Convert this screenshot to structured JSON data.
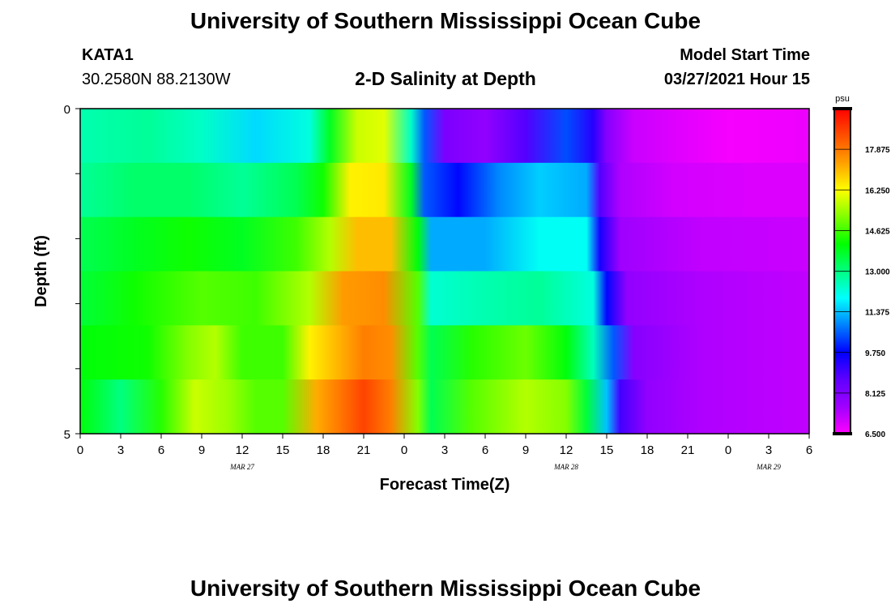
{
  "header": {
    "title": "University of Southern Mississippi Ocean Cube",
    "footer_title": "University of Southern Mississippi Ocean Cube",
    "station": "KATA1",
    "coords": "30.2580N  88.2130W",
    "chart_title": "2-D Salinity at Depth",
    "start_label": "Model Start Time",
    "start_value": "03/27/2021 Hour 15"
  },
  "chart_data": {
    "type": "heatmap",
    "title": "2-D Salinity at Depth",
    "xlabel": "Forecast Time(Z)",
    "ylabel": "Depth (ft)",
    "x_tick_labels": [
      "0",
      "3",
      "6",
      "9",
      "12",
      "15",
      "18",
      "21",
      "0",
      "3",
      "6",
      "9",
      "12",
      "15",
      "18",
      "21",
      "0",
      "3",
      "6"
    ],
    "date_labels": [
      {
        "label": "MAR 27",
        "tick_index": 4
      },
      {
        "label": "MAR 28",
        "tick_index": 12
      },
      {
        "label": "MAR 29",
        "tick_index": 17
      }
    ],
    "x_range_hours": [
      0,
      54
    ],
    "y_tick_labels": [
      "0",
      "5"
    ],
    "ylim": [
      0,
      5
    ],
    "y_rows": 5,
    "units": "psu",
    "colorbar_ticks": [
      "17.875",
      "16.250",
      "14.625",
      "13.000",
      "11.375",
      "9.750",
      "8.125",
      "6.500"
    ],
    "color_range": [
      6.5,
      19.5
    ],
    "colors": {
      "scale": [
        "#ff00ff",
        "#9f00ff",
        "#5f00ff",
        "#0000ff",
        "#0080ff",
        "#00ffff",
        "#00ff80",
        "#00ff00",
        "#80ff00",
        "#ffff00",
        "#ffa000",
        "#ff5000",
        "#ff0000"
      ]
    },
    "row_keypoints": [
      {
        "depth_row": 0,
        "points": [
          [
            0,
            12.6
          ],
          [
            5,
            12.8
          ],
          [
            9,
            12.4
          ],
          [
            13,
            11.6
          ],
          [
            17,
            12.2
          ],
          [
            18.5,
            13.8
          ],
          [
            20.5,
            15.8
          ],
          [
            22.5,
            16.0
          ],
          [
            24.5,
            12.4
          ],
          [
            25.5,
            10.5
          ],
          [
            27,
            8.2
          ],
          [
            30,
            7.8
          ],
          [
            33,
            8.8
          ],
          [
            36,
            10.4
          ],
          [
            38,
            9.3
          ],
          [
            39,
            8.0
          ],
          [
            41,
            7.1
          ],
          [
            45,
            6.8
          ],
          [
            48,
            6.6
          ],
          [
            54,
            6.7
          ]
        ]
      },
      {
        "depth_row": 1,
        "points": [
          [
            0,
            12.8
          ],
          [
            4,
            13.2
          ],
          [
            8,
            13.2
          ],
          [
            12,
            12.8
          ],
          [
            16,
            13.4
          ],
          [
            18,
            14.2
          ],
          [
            20,
            16.4
          ],
          [
            22.5,
            16.5
          ],
          [
            24.5,
            13.8
          ],
          [
            25.5,
            10.5
          ],
          [
            28,
            9.8
          ],
          [
            31,
            10.9
          ],
          [
            34,
            11.5
          ],
          [
            37.5,
            11.2
          ],
          [
            38.5,
            8.8
          ],
          [
            40,
            7.4
          ],
          [
            44,
            7.0
          ],
          [
            50,
            6.9
          ],
          [
            54,
            6.9
          ]
        ]
      },
      {
        "depth_row": 2,
        "points": [
          [
            0,
            13.4
          ],
          [
            4,
            13.8
          ],
          [
            8,
            14.2
          ],
          [
            12,
            13.8
          ],
          [
            16,
            14.6
          ],
          [
            18.5,
            15.6
          ],
          [
            20.5,
            17.0
          ],
          [
            23,
            17.0
          ],
          [
            25,
            14.0
          ],
          [
            26,
            11.2
          ],
          [
            30,
            11.2
          ],
          [
            34,
            12.0
          ],
          [
            37.5,
            12.0
          ],
          [
            38.5,
            9.5
          ],
          [
            40,
            7.6
          ],
          [
            46,
            7.2
          ],
          [
            54,
            7.1
          ]
        ]
      },
      {
        "depth_row": 3,
        "points": [
          [
            0,
            13.6
          ],
          [
            4,
            14.2
          ],
          [
            9,
            14.8
          ],
          [
            13,
            14.6
          ],
          [
            17,
            15.6
          ],
          [
            19.5,
            17.4
          ],
          [
            22.5,
            17.6
          ],
          [
            25,
            14.8
          ],
          [
            26,
            12.3
          ],
          [
            30,
            12.6
          ],
          [
            34,
            12.8
          ],
          [
            38,
            12.2
          ],
          [
            39,
            9.8
          ],
          [
            40.5,
            7.8
          ],
          [
            46,
            7.4
          ],
          [
            54,
            7.2
          ]
        ]
      },
      {
        "depth_row": 4,
        "points": [
          [
            0,
            14.0
          ],
          [
            5,
            14.2
          ],
          [
            8,
            15.2
          ],
          [
            10,
            15.6
          ],
          [
            12,
            14.6
          ],
          [
            15,
            14.6
          ],
          [
            17,
            16.4
          ],
          [
            21,
            17.8
          ],
          [
            23,
            17.6
          ],
          [
            25,
            14.8
          ],
          [
            26,
            13.4
          ],
          [
            29,
            14.4
          ],
          [
            33,
            15.0
          ],
          [
            36,
            14.0
          ],
          [
            38,
            12.5
          ],
          [
            39.5,
            10.5
          ],
          [
            41,
            8.0
          ],
          [
            46,
            7.4
          ],
          [
            54,
            7.2
          ]
        ]
      },
      {
        "depth_row": 5,
        "points": [
          [
            0,
            14.0
          ],
          [
            3,
            13.0
          ],
          [
            6,
            14.4
          ],
          [
            8.5,
            15.8
          ],
          [
            11,
            15.4
          ],
          [
            13,
            14.8
          ],
          [
            15,
            14.8
          ],
          [
            17.5,
            17.2
          ],
          [
            21,
            18.6
          ],
          [
            23,
            17.8
          ],
          [
            25,
            15.2
          ],
          [
            26,
            13.4
          ],
          [
            29,
            14.8
          ],
          [
            33,
            15.6
          ],
          [
            36,
            15.2
          ],
          [
            37.5,
            13.6
          ],
          [
            39,
            11.4
          ],
          [
            40,
            9.0
          ],
          [
            42,
            7.8
          ],
          [
            46,
            7.4
          ],
          [
            54,
            7.2
          ]
        ]
      }
    ]
  }
}
